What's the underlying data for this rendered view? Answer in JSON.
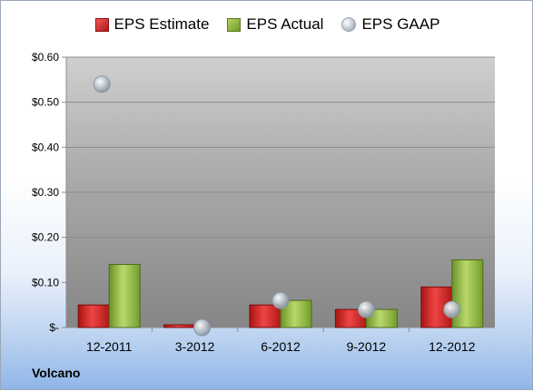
{
  "chart_data": {
    "type": "bar",
    "categories": [
      "12-2011",
      "3-2012",
      "6-2012",
      "9-2012",
      "12-2012"
    ],
    "series": [
      {
        "name": "EPS Estimate",
        "kind": "bar",
        "color": "#c92323",
        "values": [
          0.05,
          0.006,
          0.05,
          0.04,
          0.09
        ]
      },
      {
        "name": "EPS Actual",
        "kind": "bar",
        "color": "#8db33f",
        "values": [
          0.14,
          0.0,
          0.06,
          0.04,
          0.15
        ]
      },
      {
        "name": "EPS GAAP",
        "kind": "marker",
        "color": "#a9b3bf",
        "values": [
          0.54,
          0.0,
          0.06,
          0.04,
          0.04
        ]
      }
    ],
    "ylim": [
      0,
      0.6
    ],
    "yticks": [
      {
        "value": 0.6,
        "label": "$0.60"
      },
      {
        "value": 0.5,
        "label": "$0.50"
      },
      {
        "value": 0.4,
        "label": "$0.40"
      },
      {
        "value": 0.3,
        "label": "$0.30"
      },
      {
        "value": 0.2,
        "label": "$0.20"
      },
      {
        "value": 0.1,
        "label": "$0.10"
      },
      {
        "value": 0.0,
        "label": "$-"
      }
    ],
    "grid": true,
    "legend_position": "top"
  },
  "legend": {
    "estimate": "EPS Estimate",
    "actual": "EPS Actual",
    "gaap": "EPS GAAP"
  },
  "company": "Volcano"
}
